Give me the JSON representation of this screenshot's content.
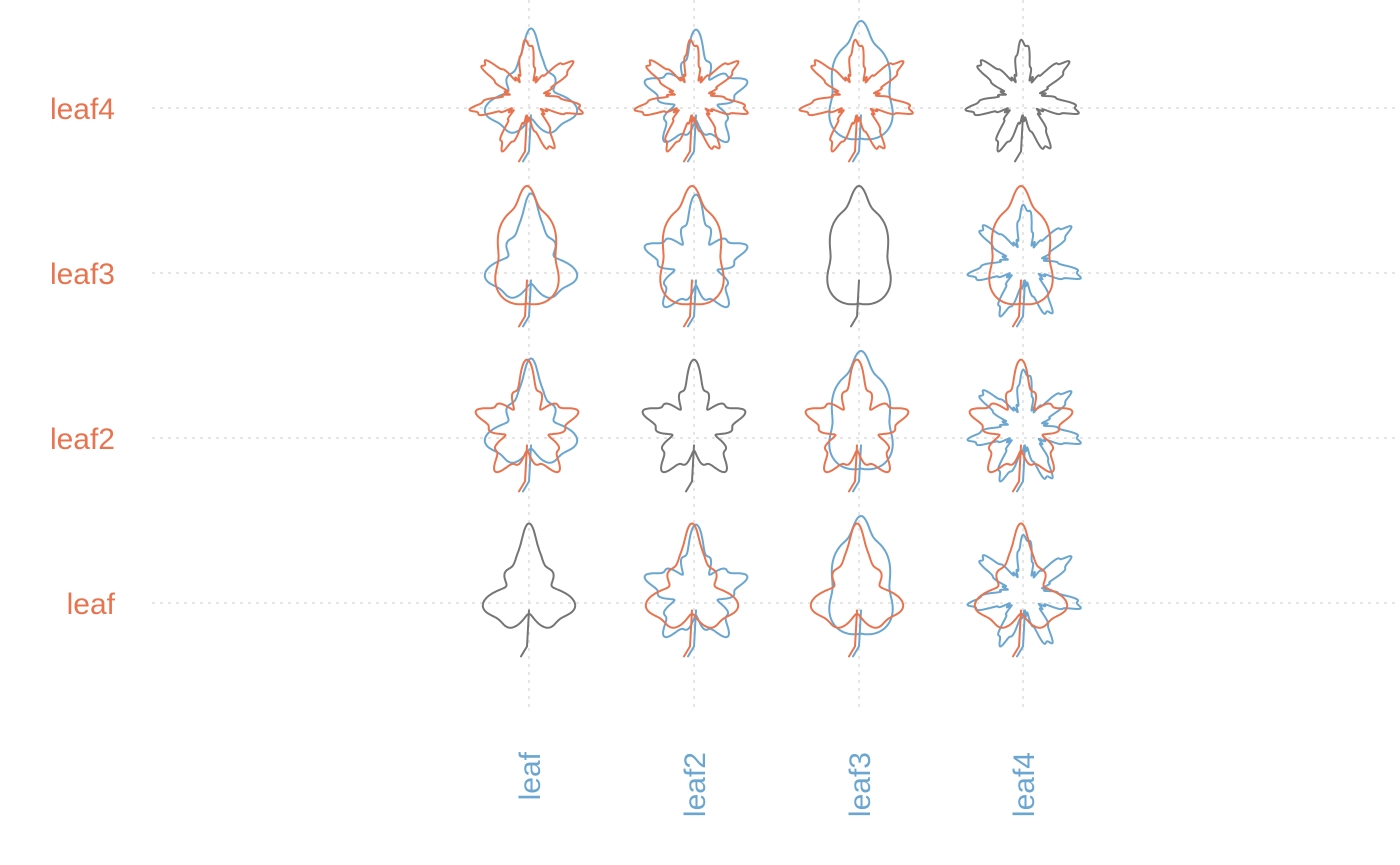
{
  "chart_data": {
    "type": "table",
    "title": "",
    "xlabel": "",
    "ylabel": "",
    "x_categories": [
      "leaf",
      "leaf2",
      "leaf3",
      "leaf4"
    ],
    "y_categories": [
      "leaf",
      "leaf2",
      "leaf3",
      "leaf4"
    ],
    "x_label_color": "#6aa6cf",
    "y_label_color": "#e8744f",
    "colors": {
      "x_shape": "#6aa6cf",
      "y_shape": "#e8744f",
      "same_shape": "#757575"
    },
    "grid": "dashed",
    "cells": [
      {
        "x": "leaf",
        "y": "leaf",
        "overlay": [
          "leaf"
        ]
      },
      {
        "x": "leaf2",
        "y": "leaf",
        "overlay": [
          "leaf2",
          "leaf"
        ]
      },
      {
        "x": "leaf3",
        "y": "leaf",
        "overlay": [
          "leaf3",
          "leaf"
        ]
      },
      {
        "x": "leaf4",
        "y": "leaf",
        "overlay": [
          "leaf4",
          "leaf"
        ]
      },
      {
        "x": "leaf",
        "y": "leaf2",
        "overlay": [
          "leaf",
          "leaf2"
        ]
      },
      {
        "x": "leaf2",
        "y": "leaf2",
        "overlay": [
          "leaf2"
        ]
      },
      {
        "x": "leaf3",
        "y": "leaf2",
        "overlay": [
          "leaf3",
          "leaf2"
        ]
      },
      {
        "x": "leaf4",
        "y": "leaf2",
        "overlay": [
          "leaf4",
          "leaf2"
        ]
      },
      {
        "x": "leaf",
        "y": "leaf3",
        "overlay": [
          "leaf",
          "leaf3"
        ]
      },
      {
        "x": "leaf2",
        "y": "leaf3",
        "overlay": [
          "leaf2",
          "leaf3"
        ]
      },
      {
        "x": "leaf3",
        "y": "leaf3",
        "overlay": [
          "leaf3"
        ]
      },
      {
        "x": "leaf4",
        "y": "leaf3",
        "overlay": [
          "leaf4",
          "leaf3"
        ]
      },
      {
        "x": "leaf",
        "y": "leaf4",
        "overlay": [
          "leaf",
          "leaf4"
        ]
      },
      {
        "x": "leaf2",
        "y": "leaf4",
        "overlay": [
          "leaf2",
          "leaf4"
        ]
      },
      {
        "x": "leaf3",
        "y": "leaf4",
        "overlay": [
          "leaf3",
          "leaf4"
        ]
      },
      {
        "x": "leaf4",
        "y": "leaf4",
        "overlay": [
          "leaf4"
        ]
      }
    ]
  }
}
